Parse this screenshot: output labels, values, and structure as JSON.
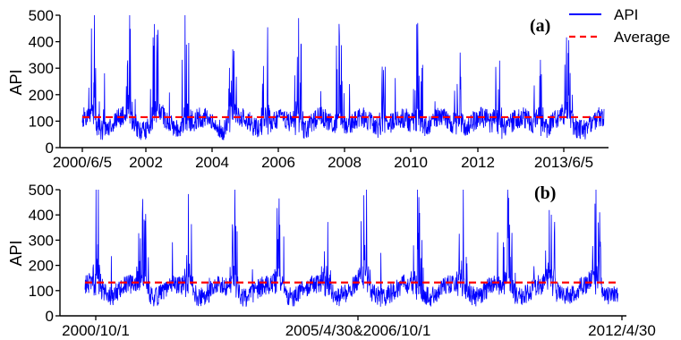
{
  "chart_data": [
    {
      "type": "line",
      "panel_label": "(a)",
      "ylabel": "API",
      "ylim": [
        0,
        500
      ],
      "yticks": [
        "0",
        "100",
        "200",
        "300",
        "400",
        "500"
      ],
      "xtick_labels": [
        "2000/6/5",
        "2002",
        "2004",
        "2006",
        "2008",
        "2010",
        "2012",
        "2013/6/5"
      ],
      "legend": {
        "position": "top-right",
        "entries": [
          "API",
          "Average"
        ]
      },
      "series": [
        {
          "name": "API",
          "color": "#0000ff",
          "style": "solid",
          "seasonal_peaks": [
            {
              "month_start": 2,
              "amp": 470
            },
            {
              "month_start": 13,
              "amp": 500
            },
            {
              "month_start": 21,
              "amp": 500
            },
            {
              "month_start": 30,
              "amp": 500
            },
            {
              "month_start": 44,
              "amp": 450
            },
            {
              "month_start": 54,
              "amp": 490
            },
            {
              "month_start": 64,
              "amp": 500
            },
            {
              "month_start": 76,
              "amp": 500
            },
            {
              "month_start": 89,
              "amp": 410
            },
            {
              "month_start": 100,
              "amp": 500
            },
            {
              "month_start": 112,
              "amp": 480
            },
            {
              "month_start": 124,
              "amp": 500
            },
            {
              "month_start": 136,
              "amp": 400
            },
            {
              "month_start": 145,
              "amp": 380
            }
          ],
          "baseline_range": [
            40,
            140
          ]
        },
        {
          "name": "Average",
          "color": "#ff0000",
          "style": "dashed",
          "values": [
            115,
            115
          ]
        }
      ]
    },
    {
      "type": "line",
      "panel_label": "(b)",
      "ylabel": "API",
      "ylim": [
        0,
        500
      ],
      "yticks": [
        "0",
        "100",
        "200",
        "300",
        "400",
        "500"
      ],
      "xtick_labels": [
        "2000/10/1",
        "2005/4/30&2006/10/1",
        "2012/4/30"
      ],
      "series": [
        {
          "name": "API",
          "color": "#0000ff",
          "style": "solid",
          "seasonal_peaks": [
            {
              "month_start": 2,
              "amp": 500
            },
            {
              "month_start": 14,
              "amp": 500
            },
            {
              "month_start": 26,
              "amp": 500
            },
            {
              "month_start": 38,
              "amp": 450
            },
            {
              "month_start": 50,
              "amp": 500
            },
            {
              "month_start": 62,
              "amp": 500
            },
            {
              "month_start": 72,
              "amp": 500
            },
            {
              "month_start": 86,
              "amp": 490
            },
            {
              "month_start": 98,
              "amp": 500
            },
            {
              "month_start": 110,
              "amp": 430
            },
            {
              "month_start": 121,
              "amp": 500
            },
            {
              "month_start": 133,
              "amp": 500
            }
          ],
          "baseline_range": [
            50,
            150
          ]
        },
        {
          "name": "Average",
          "color": "#ff0000",
          "style": "dashed",
          "values": [
            132,
            132
          ]
        }
      ]
    }
  ]
}
